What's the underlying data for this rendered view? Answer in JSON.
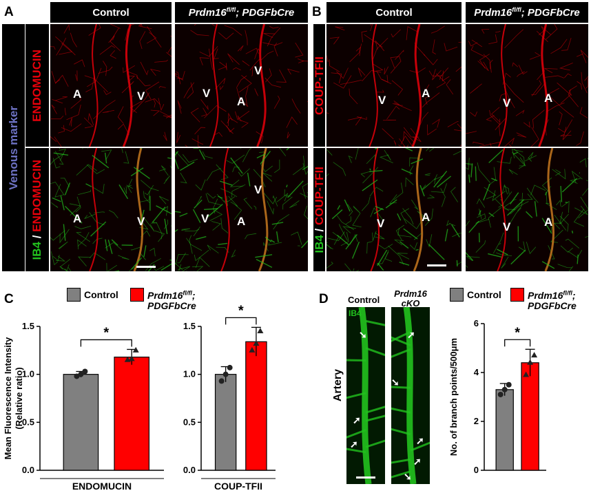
{
  "panel_letters": {
    "a": "A",
    "b": "B",
    "c": "C",
    "d": "D"
  },
  "headers": {
    "control": "Control",
    "cko_italic": "Prdm16",
    "cko_sup": "fl/fl",
    "cko_rest": "; PDGFbCre"
  },
  "side_labels": {
    "venous": "Venous marker",
    "endomucin": "ENDOMUCIN",
    "coup": "COUP-TFII",
    "ib4": "IB4",
    "slash": " / "
  },
  "markers": {
    "artery": "A",
    "vein": "V"
  },
  "colors": {
    "control": "#808080",
    "cko": "#ff0000",
    "red_channel": "#e8000a",
    "green_channel": "#22c21e",
    "venous_label": "#6d72c3"
  },
  "legend": {
    "control": "Control",
    "cko_line1_italic": "Prdm16",
    "cko_line1_sup": "fl/fl",
    "cko_line1_tail": ";",
    "cko_line2": "PDGFbCre"
  },
  "panel_d": {
    "ib4": "IB4",
    "control": "Control",
    "cko_line1": "Prdm16",
    "cko_line2": "cKO",
    "artery": "Artery"
  },
  "chart_data": [
    {
      "type": "bar",
      "categories": [
        "Control",
        "Prdm16 fl/fl; PDGFbCre"
      ],
      "values": [
        1.0,
        1.18
      ],
      "errors": [
        0.03,
        0.08
      ],
      "points": [
        [
          0.98,
          1.0,
          1.03
        ],
        [
          1.15,
          1.16,
          1.25
        ]
      ],
      "ylabel": "Mean Fluorescence Intensity (Relative ratio)",
      "xlabel": "ENDOMUCIN",
      "ylim": [
        0,
        1.5
      ],
      "yticks": [
        "0.0",
        "0.5",
        "1.0",
        "1.5"
      ],
      "significance": "*"
    },
    {
      "type": "bar",
      "categories": [
        "Control",
        "Prdm16 fl/fl; PDGFbCre"
      ],
      "values": [
        1.0,
        1.34
      ],
      "errors": [
        0.08,
        0.15
      ],
      "points": [
        [
          0.93,
          1.0,
          1.07
        ],
        [
          1.25,
          1.32,
          1.45
        ]
      ],
      "xlabel": "COUP-TFII",
      "ylim": [
        0,
        1.5
      ],
      "yticks": [
        "0.0",
        "0.5",
        "1.0",
        "1.5"
      ],
      "significance": "*"
    },
    {
      "type": "bar",
      "categories": [
        "Control",
        "Prdm16 fl/fl; PDGFbCre"
      ],
      "values": [
        3.3,
        4.4
      ],
      "errors": [
        0.25,
        0.55
      ],
      "points": [
        [
          3.1,
          3.3,
          3.5
        ],
        [
          3.9,
          4.4,
          4.7
        ]
      ],
      "ylabel": "No. of branch points/500μm",
      "ylim": [
        0,
        6
      ],
      "yticks": [
        "0",
        "2",
        "4",
        "6"
      ],
      "significance": "*"
    }
  ]
}
